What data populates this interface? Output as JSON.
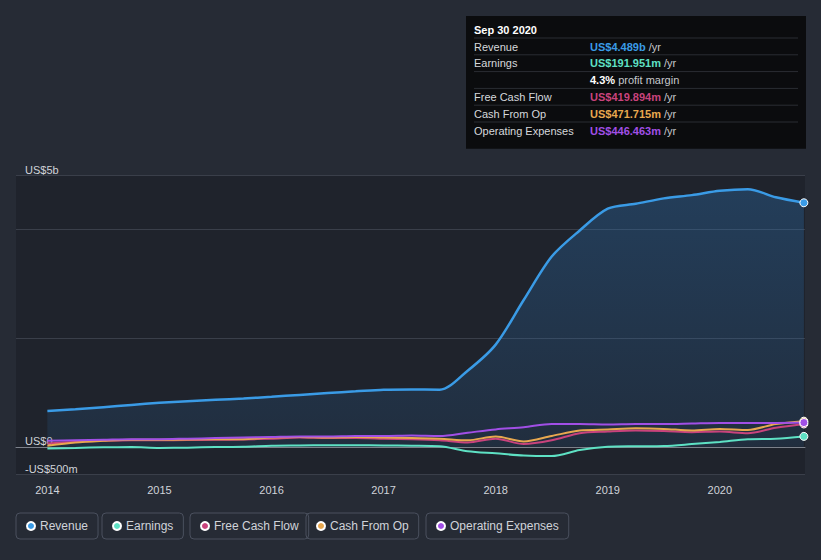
{
  "chart_data": {
    "type": "line",
    "x": [
      2014,
      2014.25,
      2014.5,
      2014.75,
      2015,
      2015.25,
      2015.5,
      2015.75,
      2016,
      2016.25,
      2016.5,
      2016.75,
      2017,
      2017.25,
      2017.5,
      2017.75,
      2018,
      2018.25,
      2018.5,
      2018.75,
      2019,
      2019.25,
      2019.5,
      2019.75,
      2020,
      2020.25,
      2020.5,
      2020.75
    ],
    "series": [
      {
        "name": "Revenue",
        "color": "#3a9be6",
        "type": "area",
        "values": [
          660,
          690,
          730,
          770,
          810,
          840,
          865,
          890,
          920,
          955,
          990,
          1020,
          1050,
          1055,
          1050,
          1400,
          1880,
          2700,
          3500,
          3980,
          4380,
          4470,
          4570,
          4630,
          4710,
          4740,
          4590,
          4489
        ]
      },
      {
        "name": "Earnings",
        "color": "#5ee1c4",
        "type": "line",
        "values": [
          -30,
          -20,
          -10,
          -5,
          -20,
          -15,
          -5,
          0,
          20,
          25,
          30,
          30,
          25,
          20,
          10,
          -80,
          -120,
          -160,
          -170,
          -60,
          0,
          10,
          15,
          50,
          90,
          140,
          150,
          192
        ]
      },
      {
        "name": "Free Cash Flow",
        "color": "#c9437c",
        "type": "line",
        "values": [
          60,
          90,
          110,
          120,
          120,
          125,
          130,
          135,
          150,
          170,
          160,
          160,
          150,
          140,
          120,
          80,
          150,
          50,
          120,
          250,
          280,
          300,
          290,
          270,
          280,
          250,
          350,
          420
        ]
      },
      {
        "name": "Cash From Op",
        "color": "#e8a84f",
        "type": "line",
        "values": [
          20,
          80,
          110,
          130,
          130,
          135,
          140,
          140,
          170,
          180,
          170,
          180,
          170,
          160,
          150,
          120,
          190,
          100,
          200,
          300,
          320,
          340,
          330,
          300,
          330,
          310,
          420,
          472
        ]
      },
      {
        "name": "Operating Expenses",
        "color": "#a14fe6",
        "type": "line",
        "values": [
          110,
          120,
          130,
          140,
          140,
          150,
          160,
          170,
          180,
          190,
          190,
          200,
          200,
          210,
          200,
          260,
          320,
          360,
          420,
          420,
          410,
          420,
          420,
          430,
          440,
          440,
          440,
          446
        ]
      }
    ],
    "xlim": [
      2013.72,
      2020.76
    ],
    "xticks": [
      2014,
      2015,
      2016,
      2017,
      2018,
      2019,
      2020
    ],
    "ylim": [
      -500,
      5000
    ],
    "yticks": [
      {
        "value": -500,
        "label": "-US$500m"
      },
      {
        "value": 0,
        "label": "US$0"
      },
      {
        "value": 2000,
        "label": null
      },
      {
        "value": 4000,
        "label": null
      },
      {
        "value": 5000,
        "label": "US$5b"
      }
    ],
    "grid": true,
    "legend": "bottom-left",
    "annotation": {
      "title": "Sep 30 2020",
      "rows": [
        {
          "label": "Revenue",
          "value": "US$4.489b",
          "unit": "/yr",
          "color": "#3a9be6"
        },
        {
          "label": "Earnings",
          "value": "US$191.951m",
          "unit": "/yr",
          "color": "#5ee1c4"
        },
        {
          "value": "4.3%",
          "unit": "profit margin",
          "color": "#ffffff"
        },
        {
          "label": "Free Cash Flow",
          "value": "US$419.894m",
          "unit": "/yr",
          "color": "#c9437c"
        },
        {
          "label": "Cash From Op",
          "value": "US$471.715m",
          "unit": "/yr",
          "color": "#e8a84f"
        },
        {
          "label": "Operating Expenses",
          "value": "US$446.463m",
          "unit": "/yr",
          "color": "#a14fe6"
        }
      ]
    }
  }
}
